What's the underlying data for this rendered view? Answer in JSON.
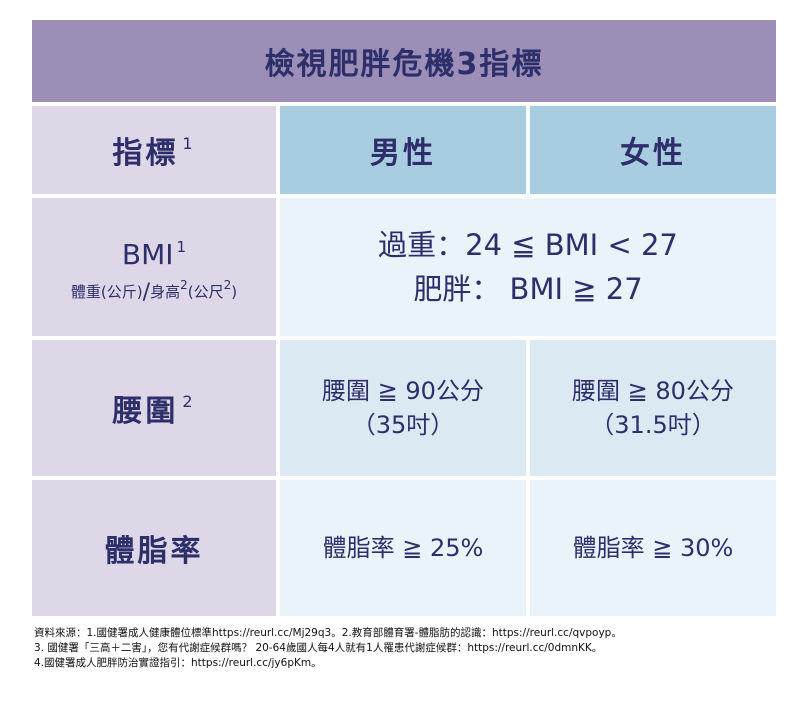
{
  "title": "檢視肥胖危機3指標",
  "header": {
    "indicator": "指標",
    "indicator_note": "1",
    "male": "男性",
    "female": "女性"
  },
  "bmi_row": {
    "label": "BMI",
    "label_note": "1",
    "formula_weight": "體重(公斤)",
    "slash": "/",
    "formula_height": "身高",
    "sup2": "2",
    "formula_unit": "(公尺",
    "close": ")",
    "overweight": "過重：24 ≦ BMI < 27",
    "obese": "肥胖： BMI ≧ 27"
  },
  "waist_row": {
    "label": "腰圍",
    "label_note": "2",
    "male_value": "腰圍 ≧ 90公分",
    "male_inch": "（35吋）",
    "female_value": "腰圍 ≧ 80公分",
    "female_inch": "（31.5吋）"
  },
  "bodyfat_row": {
    "label": "體脂率",
    "male_value": "體脂率 ≧ 25%",
    "female_value": "體脂率 ≧ 30%"
  },
  "sources": [
    "資料來源：1.國健署成人健康體位標準https://reurl.cc/Mj29q3。2.教育部體育署-體脂肪的認識：https://reurl.cc/qvpoyp。",
    "3. 國健署「三高＋二害」，您有代謝症候群嗎？ 20-64歲國人每4人就有1人罹患代謝症候群：https://reurl.cc/0dmnKK。",
    "4.國健署成人肥胖防治實證指引：https://reurl.cc/jy6pKm。"
  ],
  "colors": {
    "title_bg": "#9b8fb8",
    "label_bg": "#ddd7e8",
    "header_bg": "#a9cde0",
    "value_bg": "#e9f3f9",
    "text": "#2e2e6b"
  }
}
